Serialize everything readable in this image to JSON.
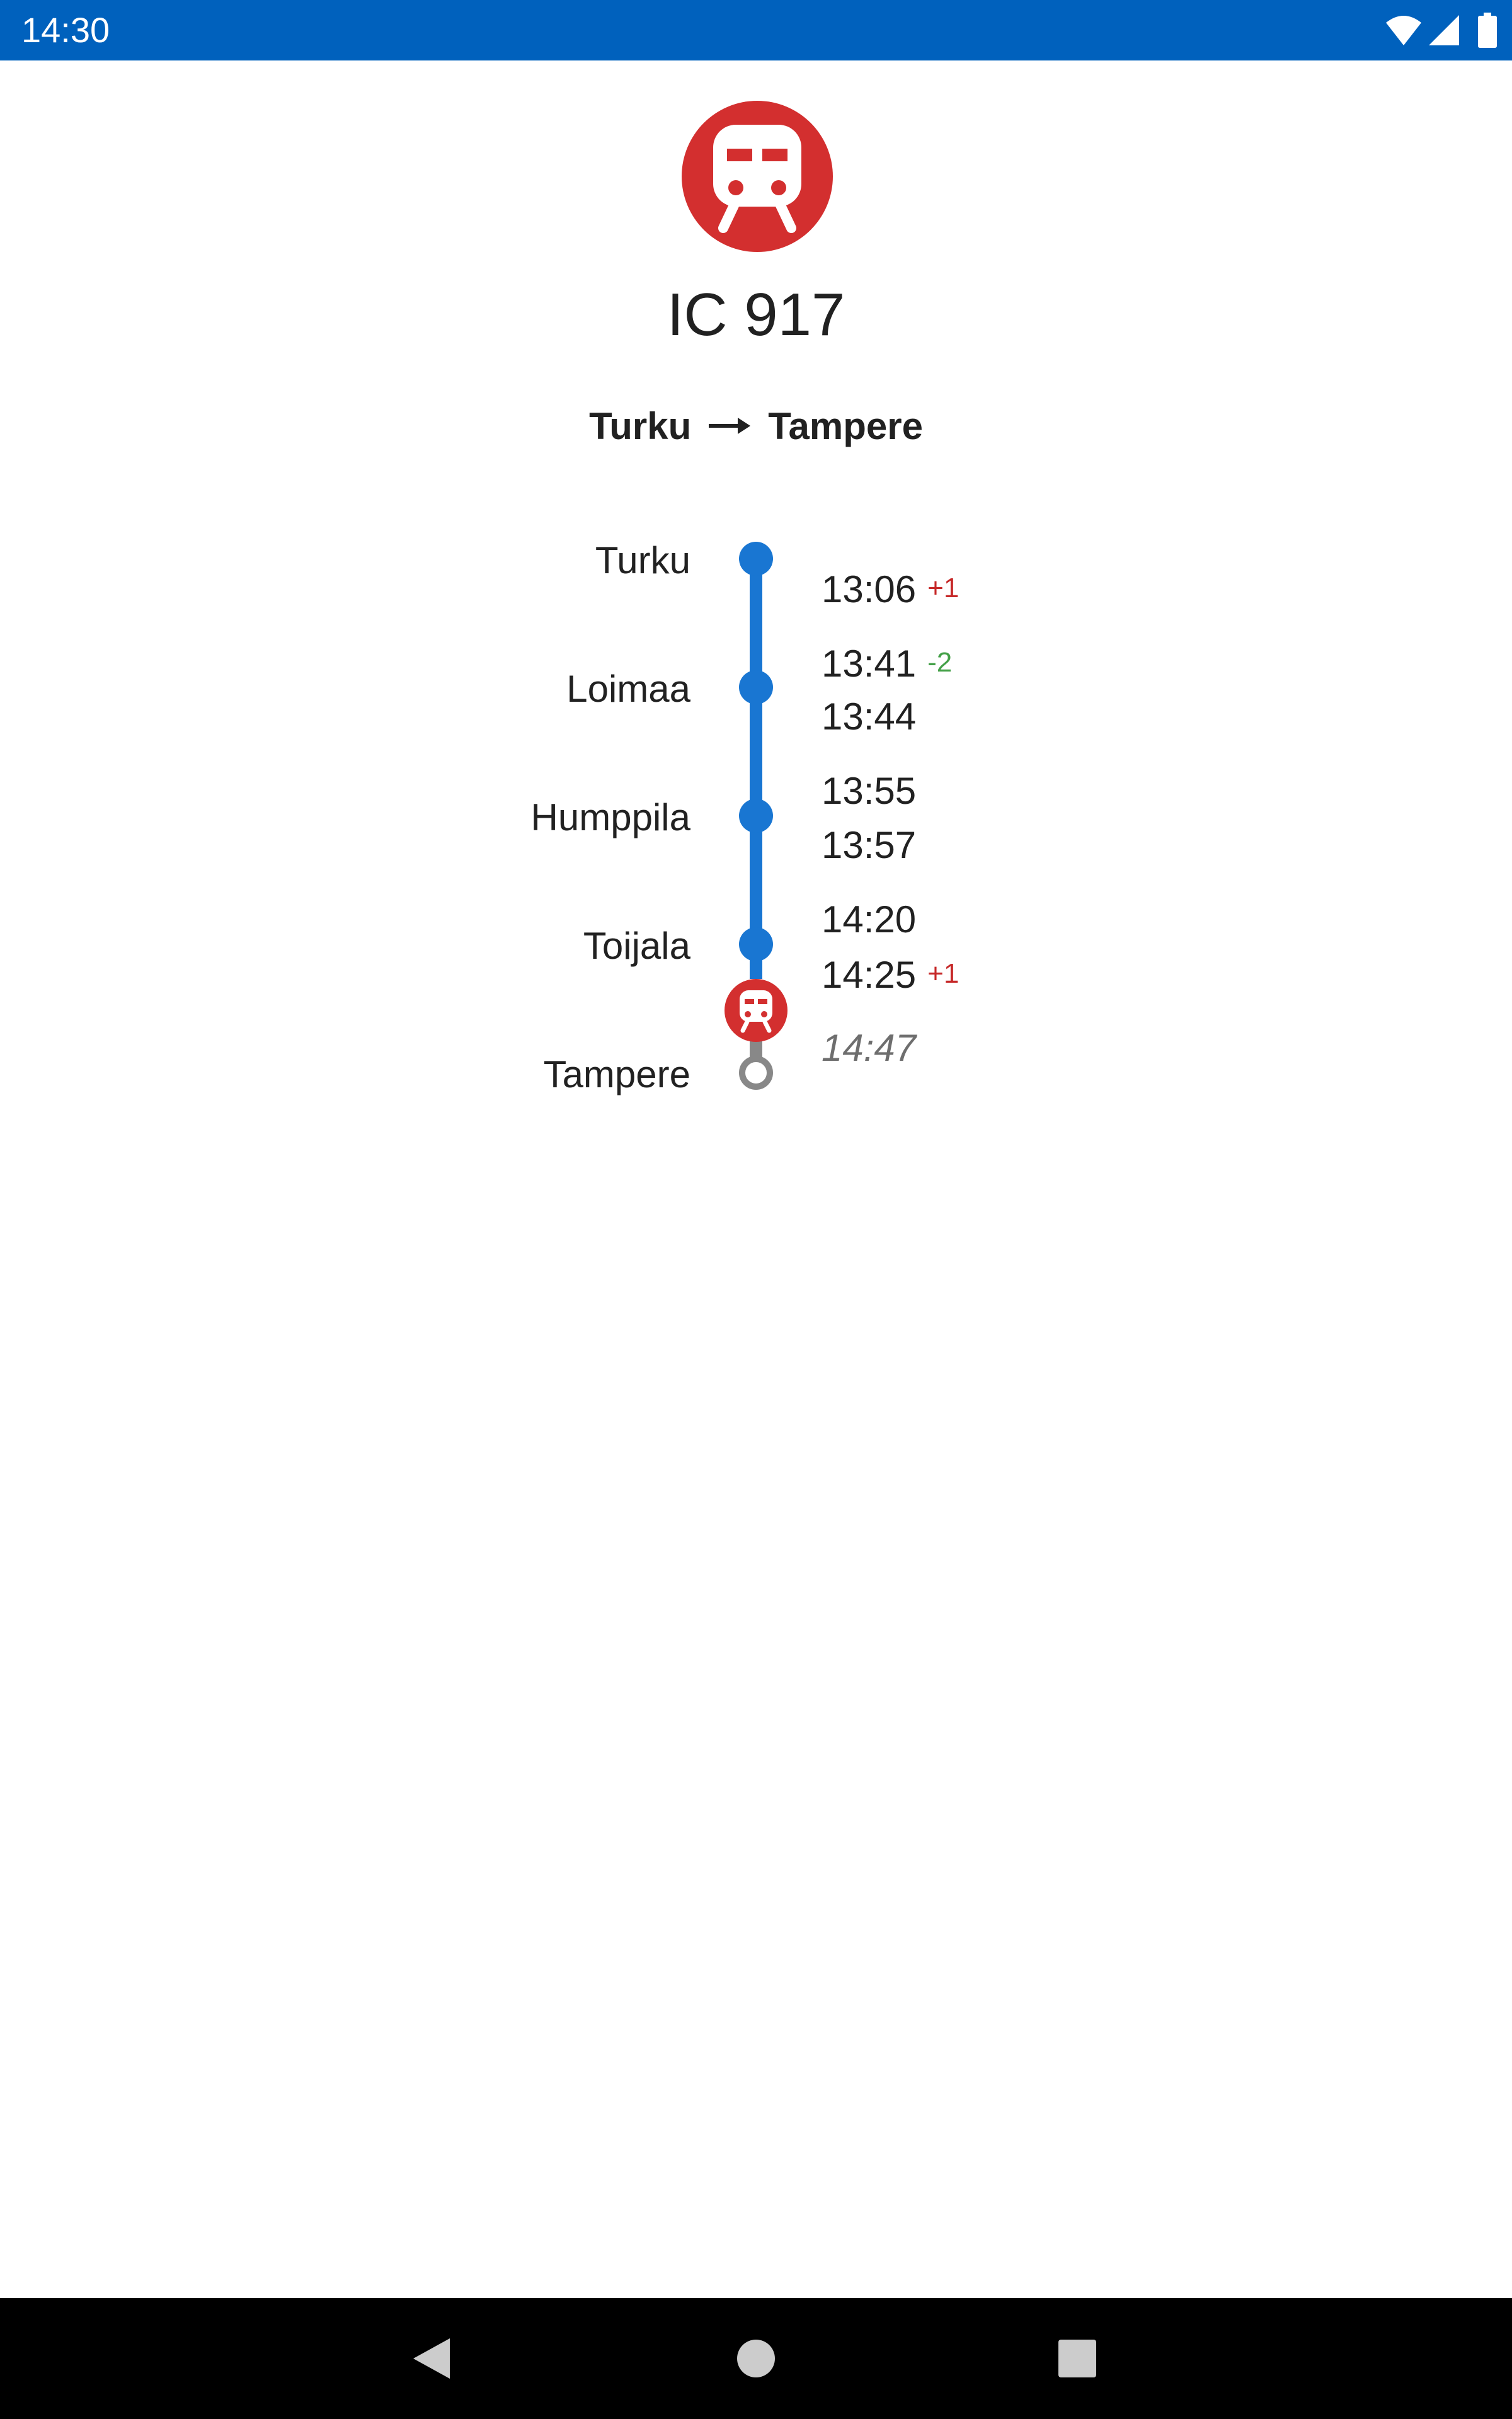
{
  "status_bar": {
    "time": "14:30",
    "icons": [
      "wifi-icon",
      "signal-icon",
      "battery-icon"
    ]
  },
  "train": {
    "title": "IC 917",
    "icon": "train-icon",
    "color": "#d32f2f"
  },
  "route": {
    "from": "Turku",
    "to": "Tampere",
    "arrow_icon": "arrow-right-icon"
  },
  "stops": [
    {
      "name": "Turku",
      "departure": "13:06",
      "departure_delay": "+1"
    },
    {
      "name": "Loimaa",
      "arrival": "13:41",
      "arrival_delay": "-2",
      "departure": "13:44"
    },
    {
      "name": "Humppila",
      "arrival": "13:55",
      "departure": "13:57"
    },
    {
      "name": "Toijala",
      "arrival": "14:20",
      "departure": "14:25",
      "departure_delay": "+1"
    },
    {
      "name": "Tampere",
      "arrival_estimate": "14:47"
    }
  ],
  "colors": {
    "status_bar": "#0061bd",
    "passed_track": "#1976d2",
    "upcoming_track": "#888888",
    "delay_late": "#c62828",
    "delay_early": "#43a047"
  },
  "nav_bar": {
    "icons": [
      "back-icon",
      "home-icon",
      "recents-icon"
    ]
  }
}
